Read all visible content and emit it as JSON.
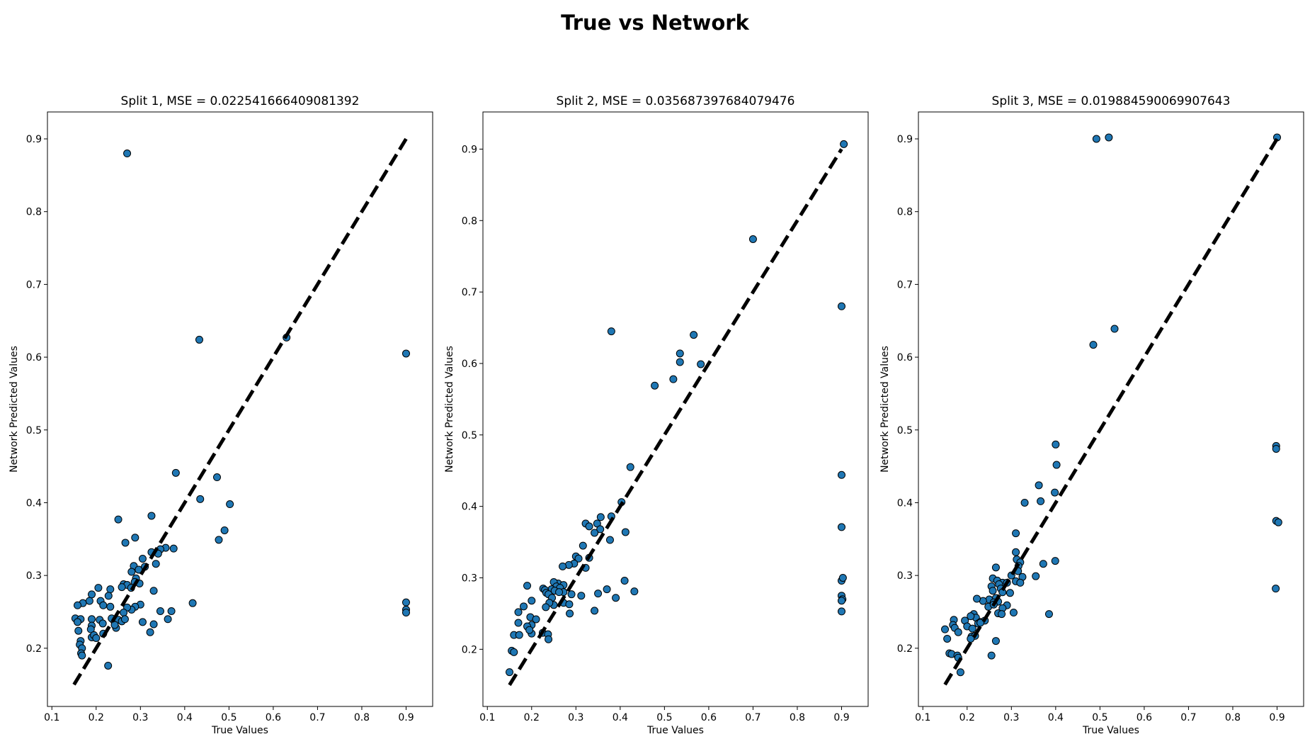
{
  "figure": {
    "title": "True vs Network"
  },
  "chart_data": [
    {
      "type": "scatter",
      "title": "Split 1, MSE = 0.022541666409081392",
      "xlabel": "True Values",
      "ylabel": "Network Predicted Values",
      "xlim": [
        0.09,
        0.96
      ],
      "ylim": [
        0.12,
        0.937
      ],
      "xticks": [
        0.1,
        0.2,
        0.3,
        0.4,
        0.5,
        0.6,
        0.7,
        0.8,
        0.9
      ],
      "yticks": [
        0.2,
        0.3,
        0.4,
        0.5,
        0.6,
        0.7,
        0.8,
        0.9
      ],
      "grid": false,
      "reference_line": {
        "style": "dashed",
        "color": "#000000",
        "x": [
          0.15,
          0.9
        ],
        "y": [
          0.15,
          0.9
        ]
      },
      "marker_color": "#1f77b4",
      "points": [
        [
          0.27,
          0.88
        ],
        [
          0.433,
          0.624
        ],
        [
          0.63,
          0.627
        ],
        [
          0.9,
          0.605
        ],
        [
          0.38,
          0.441
        ],
        [
          0.473,
          0.435
        ],
        [
          0.435,
          0.405
        ],
        [
          0.502,
          0.398
        ],
        [
          0.25,
          0.377
        ],
        [
          0.325,
          0.382
        ],
        [
          0.49,
          0.362
        ],
        [
          0.288,
          0.352
        ],
        [
          0.266,
          0.345
        ],
        [
          0.477,
          0.349
        ],
        [
          0.357,
          0.338
        ],
        [
          0.375,
          0.337
        ],
        [
          0.345,
          0.336
        ],
        [
          0.325,
          0.332
        ],
        [
          0.34,
          0.33
        ],
        [
          0.305,
          0.323
        ],
        [
          0.335,
          0.316
        ],
        [
          0.31,
          0.312
        ],
        [
          0.285,
          0.313
        ],
        [
          0.296,
          0.308
        ],
        [
          0.28,
          0.305
        ],
        [
          0.29,
          0.296
        ],
        [
          0.287,
          0.291
        ],
        [
          0.298,
          0.289
        ],
        [
          0.262,
          0.288
        ],
        [
          0.27,
          0.287
        ],
        [
          0.258,
          0.284
        ],
        [
          0.279,
          0.283
        ],
        [
          0.205,
          0.283
        ],
        [
          0.232,
          0.281
        ],
        [
          0.33,
          0.279
        ],
        [
          0.19,
          0.274
        ],
        [
          0.228,
          0.272
        ],
        [
          0.3,
          0.26
        ],
        [
          0.288,
          0.257
        ],
        [
          0.28,
          0.253
        ],
        [
          0.27,
          0.256
        ],
        [
          0.262,
          0.249
        ],
        [
          0.185,
          0.265
        ],
        [
          0.17,
          0.262
        ],
        [
          0.158,
          0.259
        ],
        [
          0.21,
          0.265
        ],
        [
          0.216,
          0.259
        ],
        [
          0.232,
          0.257
        ],
        [
          0.345,
          0.251
        ],
        [
          0.37,
          0.251
        ],
        [
          0.418,
          0.262
        ],
        [
          0.9,
          0.263
        ],
        [
          0.9,
          0.253
        ],
        [
          0.9,
          0.249
        ],
        [
          0.153,
          0.241
        ],
        [
          0.165,
          0.24
        ],
        [
          0.19,
          0.24
        ],
        [
          0.208,
          0.239
        ],
        [
          0.215,
          0.234
        ],
        [
          0.24,
          0.238
        ],
        [
          0.235,
          0.241
        ],
        [
          0.25,
          0.239
        ],
        [
          0.258,
          0.237
        ],
        [
          0.265,
          0.24
        ],
        [
          0.305,
          0.236
        ],
        [
          0.33,
          0.233
        ],
        [
          0.362,
          0.24
        ],
        [
          0.158,
          0.236
        ],
        [
          0.19,
          0.231
        ],
        [
          0.245,
          0.228
        ],
        [
          0.242,
          0.232
        ],
        [
          0.188,
          0.226
        ],
        [
          0.16,
          0.224
        ],
        [
          0.216,
          0.22
        ],
        [
          0.322,
          0.222
        ],
        [
          0.19,
          0.215
        ],
        [
          0.195,
          0.218
        ],
        [
          0.2,
          0.214
        ],
        [
          0.165,
          0.21
        ],
        [
          0.163,
          0.205
        ],
        [
          0.168,
          0.2
        ],
        [
          0.166,
          0.193
        ],
        [
          0.168,
          0.19
        ],
        [
          0.227,
          0.176
        ]
      ]
    },
    {
      "type": "scatter",
      "title": "Split 2, MSE = 0.035687397684079476",
      "xlabel": "True Values",
      "ylabel": "Network Predicted Values",
      "xlim": [
        0.09,
        0.96
      ],
      "ylim": [
        0.12,
        0.952
      ],
      "xticks": [
        0.1,
        0.2,
        0.3,
        0.4,
        0.5,
        0.6,
        0.7,
        0.8,
        0.9
      ],
      "yticks": [
        0.2,
        0.3,
        0.4,
        0.5,
        0.6,
        0.7,
        0.8,
        0.9
      ],
      "grid": false,
      "reference_line": {
        "style": "dashed",
        "color": "#000000",
        "x": [
          0.15,
          0.9
        ],
        "y": [
          0.15,
          0.9
        ]
      },
      "marker_color": "#1f77b4",
      "points": [
        [
          0.905,
          0.907
        ],
        [
          0.7,
          0.774
        ],
        [
          0.9,
          0.68
        ],
        [
          0.38,
          0.645
        ],
        [
          0.566,
          0.64
        ],
        [
          0.535,
          0.614
        ],
        [
          0.535,
          0.602
        ],
        [
          0.582,
          0.599
        ],
        [
          0.52,
          0.578
        ],
        [
          0.478,
          0.569
        ],
        [
          0.423,
          0.455
        ],
        [
          0.9,
          0.444
        ],
        [
          0.403,
          0.406
        ],
        [
          0.38,
          0.386
        ],
        [
          0.356,
          0.385
        ],
        [
          0.348,
          0.376
        ],
        [
          0.322,
          0.376
        ],
        [
          0.33,
          0.372
        ],
        [
          0.355,
          0.368
        ],
        [
          0.342,
          0.363
        ],
        [
          0.412,
          0.364
        ],
        [
          0.9,
          0.371
        ],
        [
          0.377,
          0.353
        ],
        [
          0.316,
          0.345
        ],
        [
          0.33,
          0.328
        ],
        [
          0.3,
          0.33
        ],
        [
          0.306,
          0.327
        ],
        [
          0.296,
          0.32
        ],
        [
          0.284,
          0.318
        ],
        [
          0.27,
          0.316
        ],
        [
          0.322,
          0.314
        ],
        [
          0.19,
          0.289
        ],
        [
          0.26,
          0.292
        ],
        [
          0.25,
          0.294
        ],
        [
          0.272,
          0.29
        ],
        [
          0.256,
          0.288
        ],
        [
          0.226,
          0.285
        ],
        [
          0.245,
          0.284
        ],
        [
          0.264,
          0.286
        ],
        [
          0.252,
          0.282
        ],
        [
          0.23,
          0.283
        ],
        [
          0.233,
          0.279
        ],
        [
          0.238,
          0.277
        ],
        [
          0.246,
          0.272
        ],
        [
          0.272,
          0.28
        ],
        [
          0.262,
          0.28
        ],
        [
          0.29,
          0.277
        ],
        [
          0.312,
          0.275
        ],
        [
          0.35,
          0.278
        ],
        [
          0.37,
          0.284
        ],
        [
          0.39,
          0.272
        ],
        [
          0.41,
          0.296
        ],
        [
          0.432,
          0.281
        ],
        [
          0.9,
          0.296
        ],
        [
          0.903,
          0.3
        ],
        [
          0.9,
          0.275
        ],
        [
          0.902,
          0.27
        ],
        [
          0.9,
          0.268
        ],
        [
          0.9,
          0.253
        ],
        [
          0.272,
          0.265
        ],
        [
          0.25,
          0.262
        ],
        [
          0.285,
          0.263
        ],
        [
          0.24,
          0.265
        ],
        [
          0.232,
          0.259
        ],
        [
          0.2,
          0.268
        ],
        [
          0.182,
          0.26
        ],
        [
          0.17,
          0.252
        ],
        [
          0.286,
          0.25
        ],
        [
          0.342,
          0.254
        ],
        [
          0.197,
          0.245
        ],
        [
          0.21,
          0.242
        ],
        [
          0.17,
          0.237
        ],
        [
          0.2,
          0.234
        ],
        [
          0.19,
          0.232
        ],
        [
          0.16,
          0.22
        ],
        [
          0.172,
          0.22
        ],
        [
          0.2,
          0.222
        ],
        [
          0.195,
          0.227
        ],
        [
          0.225,
          0.223
        ],
        [
          0.237,
          0.221
        ],
        [
          0.238,
          0.214
        ],
        [
          0.155,
          0.198
        ],
        [
          0.16,
          0.196
        ],
        [
          0.15,
          0.168
        ]
      ]
    },
    {
      "type": "scatter",
      "title": "Split 3, MSE = 0.019884590069907643",
      "xlabel": "True Values",
      "ylabel": "Network Predicted Values",
      "xlim": [
        0.09,
        0.96
      ],
      "ylim": [
        0.12,
        0.937
      ],
      "xticks": [
        0.1,
        0.2,
        0.3,
        0.4,
        0.5,
        0.6,
        0.7,
        0.8,
        0.9
      ],
      "yticks": [
        0.2,
        0.3,
        0.4,
        0.5,
        0.6,
        0.7,
        0.8,
        0.9
      ],
      "grid": false,
      "reference_line": {
        "style": "dashed",
        "color": "#000000",
        "x": [
          0.15,
          0.9
        ],
        "y": [
          0.15,
          0.9
        ]
      },
      "marker_color": "#1f77b4",
      "points": [
        [
          0.492,
          0.9
        ],
        [
          0.52,
          0.902
        ],
        [
          0.9,
          0.902
        ],
        [
          0.533,
          0.639
        ],
        [
          0.485,
          0.617
        ],
        [
          0.4,
          0.48
        ],
        [
          0.898,
          0.478
        ],
        [
          0.898,
          0.474
        ],
        [
          0.402,
          0.452
        ],
        [
          0.362,
          0.424
        ],
        [
          0.398,
          0.414
        ],
        [
          0.366,
          0.402
        ],
        [
          0.33,
          0.4
        ],
        [
          0.898,
          0.375
        ],
        [
          0.903,
          0.373
        ],
        [
          0.31,
          0.358
        ],
        [
          0.31,
          0.332
        ],
        [
          0.399,
          0.32
        ],
        [
          0.372,
          0.316
        ],
        [
          0.312,
          0.322
        ],
        [
          0.32,
          0.318
        ],
        [
          0.316,
          0.313
        ],
        [
          0.265,
          0.311
        ],
        [
          0.315,
          0.306
        ],
        [
          0.3,
          0.3
        ],
        [
          0.325,
          0.298
        ],
        [
          0.355,
          0.299
        ],
        [
          0.258,
          0.296
        ],
        [
          0.268,
          0.293
        ],
        [
          0.28,
          0.29
        ],
        [
          0.29,
          0.29
        ],
        [
          0.31,
          0.292
        ],
        [
          0.32,
          0.29
        ],
        [
          0.255,
          0.285
        ],
        [
          0.258,
          0.279
        ],
        [
          0.272,
          0.288
        ],
        [
          0.276,
          0.282
        ],
        [
          0.28,
          0.277
        ],
        [
          0.297,
          0.276
        ],
        [
          0.265,
          0.269
        ],
        [
          0.25,
          0.267
        ],
        [
          0.236,
          0.265
        ],
        [
          0.222,
          0.268
        ],
        [
          0.26,
          0.263
        ],
        [
          0.27,
          0.264
        ],
        [
          0.29,
          0.259
        ],
        [
          0.248,
          0.257
        ],
        [
          0.26,
          0.26
        ],
        [
          0.28,
          0.255
        ],
        [
          0.215,
          0.247
        ],
        [
          0.22,
          0.242
        ],
        [
          0.225,
          0.234
        ],
        [
          0.23,
          0.236
        ],
        [
          0.24,
          0.238
        ],
        [
          0.208,
          0.244
        ],
        [
          0.195,
          0.238
        ],
        [
          0.17,
          0.239
        ],
        [
          0.168,
          0.232
        ],
        [
          0.172,
          0.228
        ],
        [
          0.18,
          0.222
        ],
        [
          0.2,
          0.23
        ],
        [
          0.212,
          0.227
        ],
        [
          0.21,
          0.216
        ],
        [
          0.218,
          0.217
        ],
        [
          0.208,
          0.213
        ],
        [
          0.23,
          0.235
        ],
        [
          0.15,
          0.226
        ],
        [
          0.155,
          0.213
        ],
        [
          0.27,
          0.248
        ],
        [
          0.278,
          0.247
        ],
        [
          0.305,
          0.249
        ],
        [
          0.385,
          0.247
        ],
        [
          0.897,
          0.282
        ],
        [
          0.265,
          0.21
        ],
        [
          0.255,
          0.19
        ],
        [
          0.16,
          0.193
        ],
        [
          0.165,
          0.192
        ],
        [
          0.178,
          0.19
        ],
        [
          0.18,
          0.187
        ],
        [
          0.185,
          0.167
        ]
      ]
    }
  ]
}
